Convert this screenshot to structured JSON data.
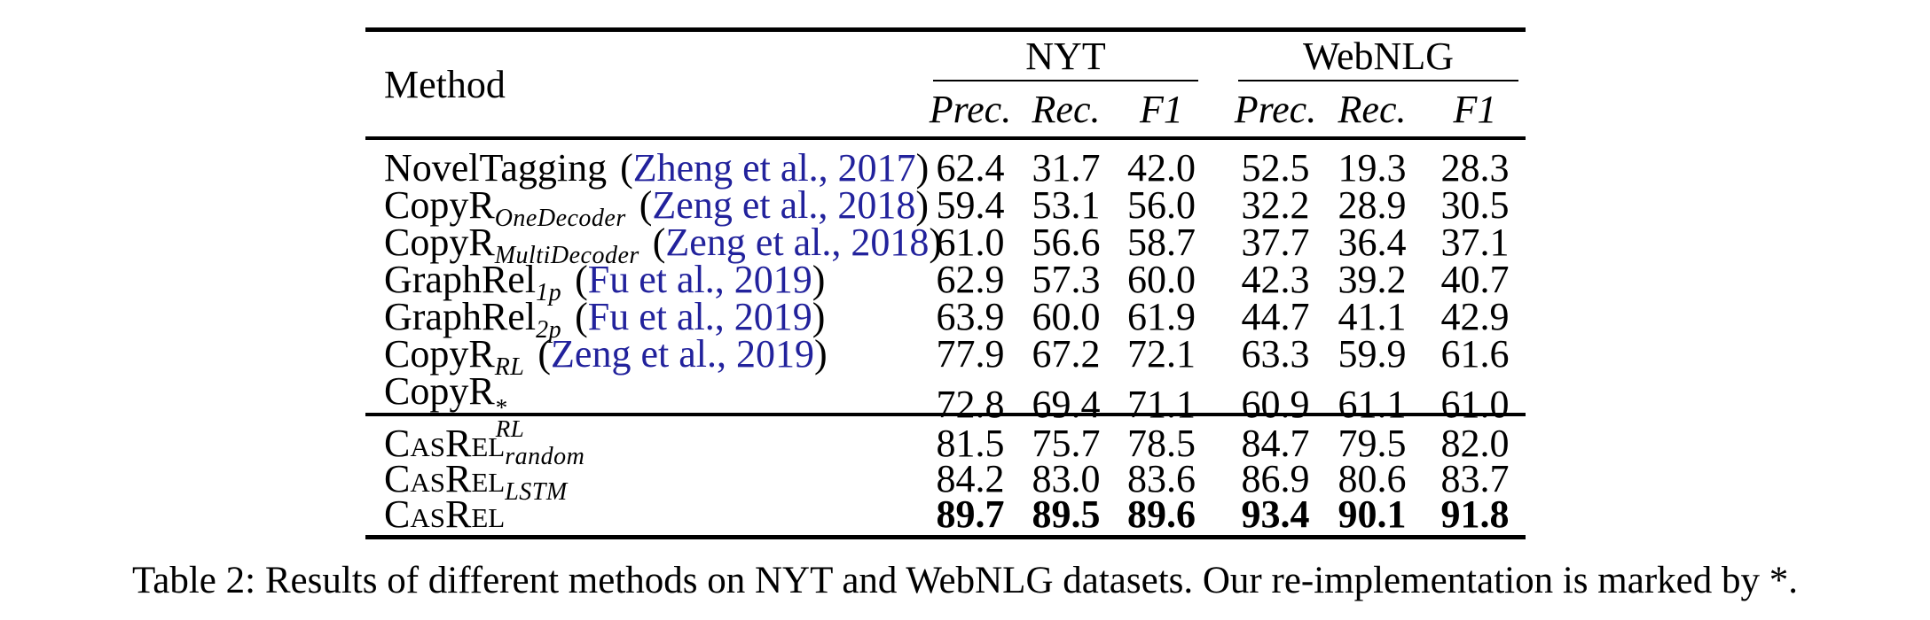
{
  "figure": {
    "caption": "Table 2: Results of different methods on NYT and WebNLG datasets. Our re-implementation is marked by *.",
    "table": {
      "method_header": "Method",
      "paren_open": "(",
      "paren_close": ")",
      "citation_color": "#22229c",
      "groups": [
        {
          "label": "NYT",
          "columns": [
            "Prec.",
            "Rec.",
            "F1"
          ]
        },
        {
          "label": "WebNLG",
          "columns": [
            "Prec.",
            "Rec.",
            "F1"
          ]
        }
      ],
      "sections": [
        {
          "rows": [
            {
              "name": "NovelTagging",
              "cite": "Zheng et al., 2017",
              "values": [
                "62.4",
                "31.7",
                "42.0",
                "52.5",
                "19.3",
                "28.3"
              ]
            },
            {
              "name": "CopyR",
              "sub": "OneDecoder",
              "cite": "Zeng et al., 2018",
              "values": [
                "59.4",
                "53.1",
                "56.0",
                "32.2",
                "28.9",
                "30.5"
              ]
            },
            {
              "name": "CopyR",
              "sub": "MultiDecoder",
              "cite": "Zeng et al., 2018",
              "values": [
                "61.0",
                "56.6",
                "58.7",
                "37.7",
                "36.4",
                "37.1"
              ]
            },
            {
              "name": "GraphRel",
              "sub": "1p",
              "cite": "Fu et al., 2019",
              "values": [
                "62.9",
                "57.3",
                "60.0",
                "42.3",
                "39.2",
                "40.7"
              ]
            },
            {
              "name": "GraphRel",
              "sub": "2p",
              "cite": "Fu et al., 2019",
              "values": [
                "63.9",
                "60.0",
                "61.9",
                "44.7",
                "41.1",
                "42.9"
              ]
            },
            {
              "name": "CopyR",
              "sub": "RL",
              "cite": "Zeng et al., 2019",
              "values": [
                "77.9",
                "67.2",
                "72.1",
                "63.3",
                "59.9",
                "61.6"
              ]
            },
            {
              "name": "CopyR",
              "sup": "*",
              "sub": "RL",
              "values": [
                "72.8",
                "69.4",
                "71.1",
                "60.9",
                "61.1",
                "61.0"
              ]
            }
          ]
        },
        {
          "rows": [
            {
              "name": "CasRel",
              "sub": "random",
              "values": [
                "81.5",
                "75.7",
                "78.5",
                "84.7",
                "79.5",
                "82.0"
              ]
            },
            {
              "name": "CasRel",
              "sub": "LSTM",
              "values": [
                "84.2",
                "83.0",
                "83.6",
                "86.9",
                "80.6",
                "83.7"
              ]
            },
            {
              "name": "CasRel",
              "values": [
                "89.7",
                "89.5",
                "89.6",
                "93.4",
                "90.1",
                "91.8"
              ],
              "bold": true
            }
          ]
        }
      ]
    }
  }
}
